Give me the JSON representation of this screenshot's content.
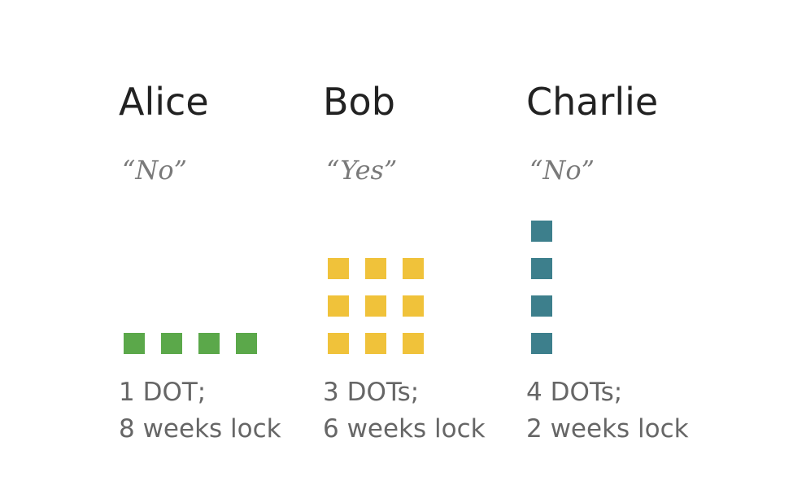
{
  "people": [
    {
      "name": "Alice",
      "vote": "“No”",
      "caption_line1": "1 DOT;",
      "caption_line2": "8 weeks lock",
      "color": "#5ba84a",
      "grid": {
        "cols": 4,
        "rows": 1
      }
    },
    {
      "name": "Bob",
      "vote": "“Yes”",
      "caption_line1": "3 DOTs;",
      "caption_line2": "6 weeks lock",
      "color": "#f0c23a",
      "grid": {
        "cols": 3,
        "rows": 3
      }
    },
    {
      "name": "Charlie",
      "vote": "“No”",
      "caption_line1": "4 DOTs;",
      "caption_line2": "2 weeks lock",
      "color": "#3d7f8c",
      "grid": {
        "cols": 1,
        "rows": 4
      }
    }
  ]
}
